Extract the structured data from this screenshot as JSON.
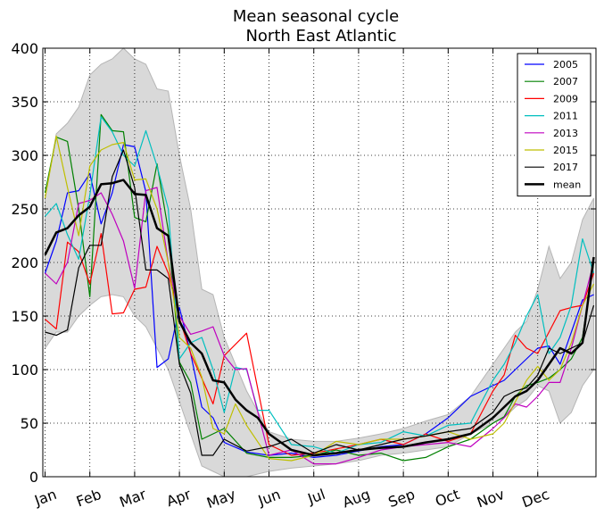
{
  "chart_data": {
    "type": "line",
    "title": "Mean seasonal cycle",
    "subtitle": "North East Atlantic",
    "xlabel": "",
    "ylabel": "",
    "ylim": [
      0,
      400
    ],
    "yticks": [
      0,
      50,
      100,
      150,
      200,
      250,
      300,
      350,
      400
    ],
    "x_tick_labels": [
      "Jan",
      "Feb",
      "Mar",
      "Apr",
      "May",
      "Jun",
      "Jul",
      "Aug",
      "Sep",
      "Oct",
      "Nov",
      "Dec"
    ],
    "x_unit": "month (fractional, Jan = 0)",
    "grid": true,
    "legend_position": "top-right",
    "band": {
      "x": [
        0.0,
        0.25,
        0.5,
        0.75,
        1.0,
        1.25,
        1.5,
        1.75,
        2.0,
        2.25,
        2.5,
        2.75,
        3.0,
        3.25,
        3.5,
        3.75,
        4.0,
        4.5,
        5.0,
        5.5,
        6.0,
        6.5,
        7.0,
        7.5,
        8.0,
        8.5,
        9.0,
        9.5,
        10.0,
        10.25,
        10.5,
        10.75,
        11.0,
        11.25,
        11.5,
        11.75,
        12.0,
        12.25
      ],
      "upper": [
        260,
        320,
        330,
        345,
        375,
        385,
        390,
        400,
        390,
        385,
        362,
        360,
        300,
        250,
        175,
        170,
        130,
        80,
        42,
        35,
        33,
        33,
        36,
        40,
        45,
        52,
        58,
        75,
        105,
        120,
        135,
        145,
        175,
        215,
        185,
        200,
        240,
        260
      ],
      "lower": [
        120,
        135,
        135,
        150,
        160,
        168,
        170,
        168,
        150,
        140,
        120,
        100,
        70,
        40,
        10,
        5,
        0,
        0,
        5,
        8,
        10,
        12,
        15,
        20,
        22,
        25,
        28,
        40,
        50,
        55,
        65,
        72,
        85,
        80,
        50,
        60,
        85,
        100
      ]
    },
    "series": [
      {
        "name": "2005",
        "color": "#0000ff",
        "x": [
          0.0,
          0.25,
          0.5,
          0.75,
          1.0,
          1.25,
          1.5,
          1.75,
          2.0,
          2.25,
          2.5,
          2.75,
          3.0,
          3.25,
          3.5,
          3.75,
          4.0,
          4.5,
          5.0,
          5.5,
          6.0,
          6.5,
          7.0,
          7.5,
          8.0,
          8.5,
          9.0,
          9.5,
          10.0,
          10.25,
          10.5,
          10.75,
          11.0,
          11.25,
          11.5,
          11.75,
          12.0,
          12.25
        ],
        "values": [
          190,
          220,
          265,
          267,
          283,
          236,
          265,
          310,
          308,
          266,
          102,
          110,
          158,
          115,
          65,
          55,
          32,
          23,
          20,
          22,
          18,
          20,
          24,
          28,
          30,
          40,
          55,
          75,
          85,
          90,
          100,
          110,
          120,
          122,
          105,
          135,
          165,
          170
        ]
      },
      {
        "name": "2007",
        "color": "#008000",
        "x": [
          0.0,
          0.25,
          0.5,
          0.75,
          1.0,
          1.25,
          1.5,
          1.75,
          2.0,
          2.25,
          2.5,
          2.75,
          3.0,
          3.25,
          3.5,
          3.75,
          4.0,
          4.5,
          5.0,
          5.5,
          6.0,
          6.5,
          7.0,
          7.5,
          8.0,
          8.5,
          9.0,
          9.5,
          10.0,
          10.25,
          10.5,
          10.75,
          11.0,
          11.25,
          11.5,
          11.75,
          12.0,
          12.25
        ],
        "values": [
          265,
          317,
          313,
          250,
          168,
          338,
          323,
          322,
          242,
          238,
          292,
          230,
          107,
          88,
          35,
          40,
          45,
          22,
          18,
          18,
          20,
          25,
          20,
          22,
          15,
          18,
          28,
          35,
          50,
          56,
          75,
          85,
          88,
          92,
          100,
          110,
          130,
          200
        ]
      },
      {
        "name": "2009",
        "color": "#ff0000",
        "x": [
          0.0,
          0.25,
          0.5,
          0.75,
          1.0,
          1.25,
          1.5,
          1.75,
          2.0,
          2.25,
          2.5,
          2.75,
          3.0,
          3.25,
          3.5,
          3.75,
          4.0,
          4.5,
          5.0,
          5.5,
          6.0,
          6.5,
          7.0,
          7.5,
          8.0,
          8.5,
          9.0,
          9.5,
          10.0,
          10.25,
          10.5,
          10.75,
          11.0,
          11.25,
          11.5,
          11.75,
          12.0,
          12.25
        ],
        "values": [
          147,
          138,
          219,
          210,
          180,
          227,
          152,
          153,
          175,
          177,
          215,
          190,
          148,
          115,
          92,
          68,
          113,
          134,
          30,
          20,
          22,
          26,
          30,
          35,
          30,
          40,
          33,
          40,
          80,
          95,
          132,
          120,
          115,
          135,
          155,
          158,
          160,
          190
        ]
      },
      {
        "name": "2011",
        "color": "#00bfbf",
        "x": [
          0.0,
          0.25,
          0.5,
          0.75,
          1.0,
          1.25,
          1.5,
          1.75,
          2.0,
          2.25,
          2.5,
          2.75,
          3.0,
          3.25,
          3.5,
          3.75,
          4.0,
          4.25,
          4.5,
          4.75,
          5.0,
          5.5,
          6.0,
          6.5,
          7.0,
          7.5,
          8.0,
          8.5,
          9.0,
          9.5,
          10.0,
          10.25,
          10.5,
          10.75,
          11.0,
          11.25,
          11.5,
          11.75,
          12.0,
          12.25
        ],
        "values": [
          243,
          255,
          226,
          203,
          263,
          336,
          322,
          300,
          290,
          323,
          290,
          250,
          110,
          125,
          130,
          100,
          60,
          102,
          100,
          62,
          62,
          30,
          28,
          22,
          30,
          32,
          42,
          38,
          48,
          50,
          90,
          105,
          125,
          150,
          170,
          115,
          130,
          160,
          222,
          190
        ]
      },
      {
        "name": "2013",
        "color": "#bf00bf",
        "x": [
          0.0,
          0.25,
          0.5,
          0.75,
          1.0,
          1.25,
          1.5,
          1.75,
          2.0,
          2.25,
          2.5,
          2.75,
          3.0,
          3.25,
          3.5,
          3.75,
          4.0,
          4.25,
          4.5,
          5.0,
          5.5,
          6.0,
          6.5,
          7.0,
          7.5,
          8.0,
          8.5,
          9.0,
          9.5,
          10.0,
          10.25,
          10.5,
          10.75,
          11.0,
          11.25,
          11.5,
          11.75,
          12.0,
          12.25
        ],
        "values": [
          190,
          180,
          200,
          255,
          258,
          265,
          245,
          220,
          176,
          267,
          270,
          200,
          150,
          133,
          136,
          140,
          113,
          100,
          101,
          20,
          25,
          12,
          12,
          18,
          25,
          28,
          30,
          32,
          28,
          45,
          55,
          68,
          65,
          75,
          88,
          88,
          120,
          160,
          200
        ]
      },
      {
        "name": "2015",
        "color": "#bfbf00",
        "x": [
          0.0,
          0.25,
          0.5,
          0.75,
          1.0,
          1.25,
          1.5,
          1.75,
          2.0,
          2.25,
          2.5,
          2.75,
          3.0,
          3.25,
          3.5,
          3.75,
          4.0,
          4.25,
          4.5,
          5.0,
          5.5,
          6.0,
          6.5,
          7.0,
          7.5,
          8.0,
          8.5,
          9.0,
          9.5,
          10.0,
          10.25,
          10.5,
          10.75,
          11.0,
          11.25,
          11.5,
          11.75,
          12.0,
          12.25
        ],
        "values": [
          260,
          318,
          270,
          225,
          290,
          305,
          310,
          312,
          277,
          278,
          250,
          200,
          130,
          120,
          93,
          45,
          40,
          68,
          48,
          17,
          15,
          20,
          33,
          30,
          35,
          35,
          38,
          42,
          35,
          40,
          50,
          70,
          90,
          103,
          90,
          100,
          125,
          160,
          180
        ]
      },
      {
        "name": "2017",
        "color": "#000000",
        "x": [
          0.0,
          0.25,
          0.5,
          0.75,
          1.0,
          1.25,
          1.5,
          1.75,
          2.0,
          2.25,
          2.5,
          2.75,
          3.0,
          3.25,
          3.5,
          3.75,
          4.0,
          4.5,
          5.0,
          5.5,
          6.0,
          6.5,
          7.0,
          7.5,
          8.0,
          8.5,
          9.0,
          9.5,
          10.0,
          10.25,
          10.5,
          10.75,
          11.0,
          11.25,
          11.5,
          11.75,
          12.0,
          12.25
        ],
        "values": [
          135,
          132,
          137,
          195,
          216,
          216,
          280,
          305,
          270,
          193,
          193,
          185,
          105,
          78,
          20,
          20,
          35,
          24,
          28,
          35,
          22,
          30,
          25,
          30,
          35,
          38,
          42,
          45,
          60,
          75,
          80,
          83,
          95,
          120,
          115,
          120,
          125,
          160
        ]
      },
      {
        "name": "mean",
        "color": "#000000",
        "width": 2.5,
        "x": [
          0.0,
          0.25,
          0.5,
          0.75,
          1.0,
          1.25,
          1.5,
          1.75,
          2.0,
          2.25,
          2.5,
          2.75,
          3.0,
          3.25,
          3.5,
          3.75,
          4.0,
          4.25,
          4.5,
          4.75,
          5.0,
          5.5,
          6.0,
          6.5,
          7.0,
          7.5,
          8.0,
          8.5,
          9.0,
          9.5,
          10.0,
          10.25,
          10.5,
          10.75,
          11.0,
          11.25,
          11.5,
          11.75,
          12.0,
          12.25
        ],
        "values": [
          207,
          228,
          232,
          244,
          252,
          273,
          274,
          277,
          264,
          263,
          232,
          225,
          145,
          125,
          115,
          90,
          88,
          72,
          62,
          55,
          40,
          25,
          20,
          22,
          25,
          27,
          28,
          32,
          35,
          40,
          55,
          65,
          75,
          80,
          90,
          105,
          120,
          115,
          125,
          205
        ]
      }
    ]
  }
}
